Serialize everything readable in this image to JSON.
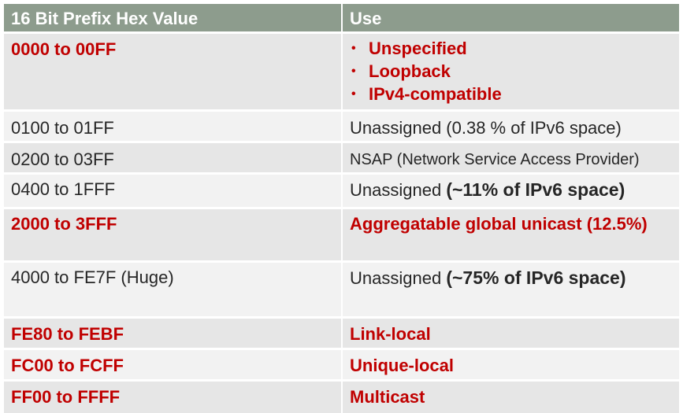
{
  "header": {
    "col1": "16 Bit Prefix Hex Value",
    "col2": "Use"
  },
  "rows": [
    {
      "prefix": "0000  to 00FF",
      "uses": [
        "Unspecified",
        "Loopback",
        "IPv4-compatible"
      ],
      "bullet": "•"
    },
    {
      "prefix": "0100 to 01FF",
      "use": "Unassigned (0.38 % of IPv6 space)"
    },
    {
      "prefix": "0200 to 03FF",
      "use": "NSAP (Network Service Access Provider)"
    },
    {
      "prefix": "0400 to 1FFF",
      "use_plain": "Unassigned ",
      "use_bold": "(~11% of IPv6 space)"
    },
    {
      "prefix": "2000 to 3FFF",
      "use": "Aggregatable global unicast (12.5%)"
    },
    {
      "prefix": "4000 to FE7F (Huge)",
      "use_plain": "Unassigned ",
      "use_bold": "(~75% of IPv6 space)"
    },
    {
      "prefix": "FE80 to FEBF",
      "use": "Link-local"
    },
    {
      "prefix": "FC00 to FCFF",
      "use": "Unique-local"
    },
    {
      "prefix": "FF00 to FFFF",
      "use": "Multicast"
    }
  ],
  "colors": {
    "header_bg": "#8d9c8d",
    "highlight_text": "#c00000",
    "row_dark": "#e6e6e6",
    "row_light": "#f2f2f2"
  }
}
